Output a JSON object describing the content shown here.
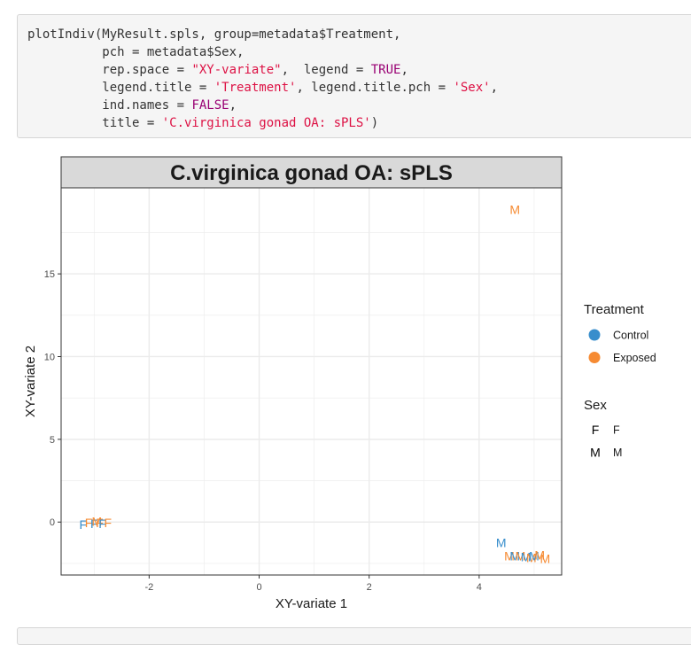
{
  "code": {
    "lines": [
      [
        {
          "t": "plotIndiv(MyResult.spls, group=metadata$Treatment,"
        }
      ],
      [
        {
          "t": "          pch = metadata$Sex,"
        }
      ],
      [
        {
          "t": "          rep.space = "
        },
        {
          "t": "\"XY-variate\"",
          "c": "str"
        },
        {
          "t": ",  legend = "
        },
        {
          "t": "TRUE",
          "c": "kw"
        },
        {
          "t": ","
        }
      ],
      [
        {
          "t": "          legend.title = "
        },
        {
          "t": "'Treatment'",
          "c": "str"
        },
        {
          "t": ", legend.title.pch = "
        },
        {
          "t": "'Sex'",
          "c": "str"
        },
        {
          "t": ","
        }
      ],
      [
        {
          "t": "          ind.names = "
        },
        {
          "t": "FALSE",
          "c": "kw"
        },
        {
          "t": ","
        }
      ],
      [
        {
          "t": "          title = "
        },
        {
          "t": "'C.virginica gonad OA: sPLS'",
          "c": "str"
        },
        {
          "t": ")"
        }
      ]
    ]
  },
  "colors": {
    "control": "#388ECC",
    "exposed": "#F68B33",
    "panel_header_bg": "#d9d9d9",
    "grid": "#ebebeb"
  },
  "chart_data": {
    "type": "scatter",
    "title": "C.virginica gonad OA: sPLS",
    "xlabel": "XY-variate 1",
    "ylabel": "XY-variate 2",
    "xlim": [
      -3.6,
      5.5
    ],
    "ylim": [
      -3.2,
      20.2
    ],
    "xticks": [
      -2,
      0,
      2,
      4
    ],
    "yticks": [
      0,
      5,
      10,
      15
    ],
    "grid": true,
    "legend_position": "right",
    "legend": {
      "group_title": "Treatment",
      "groups": [
        {
          "name": "Control",
          "color": "#388ECC"
        },
        {
          "name": "Exposed",
          "color": "#F68B33"
        }
      ],
      "pch_title": "Sex",
      "pch": [
        {
          "symbol": "F",
          "label": "F"
        },
        {
          "symbol": "M",
          "label": "M"
        }
      ]
    },
    "points": [
      {
        "x": 4.65,
        "y": 18.9,
        "group": "Exposed",
        "sex": "M"
      },
      {
        "x": 4.4,
        "y": -1.25,
        "group": "Control",
        "sex": "M"
      },
      {
        "x": 4.55,
        "y": -2.05,
        "group": "Exposed",
        "sex": "M"
      },
      {
        "x": 4.65,
        "y": -2.05,
        "group": "Control",
        "sex": "M"
      },
      {
        "x": 4.75,
        "y": -2.05,
        "group": "Exposed",
        "sex": "M"
      },
      {
        "x": 4.85,
        "y": -2.1,
        "group": "Control",
        "sex": "M"
      },
      {
        "x": 4.95,
        "y": -2.15,
        "group": "Exposed",
        "sex": "M"
      },
      {
        "x": 5.0,
        "y": -2.05,
        "group": "Control",
        "sex": "M"
      },
      {
        "x": 5.1,
        "y": -2.0,
        "group": "Exposed",
        "sex": "M"
      },
      {
        "x": 5.2,
        "y": -2.2,
        "group": "Exposed",
        "sex": "M"
      },
      {
        "x": -3.2,
        "y": -0.15,
        "group": "Control",
        "sex": "F"
      },
      {
        "x": -3.1,
        "y": -0.05,
        "group": "Exposed",
        "sex": "F"
      },
      {
        "x": -3.0,
        "y": -0.1,
        "group": "Control",
        "sex": "F"
      },
      {
        "x": -2.95,
        "y": 0.05,
        "group": "Exposed",
        "sex": "M"
      },
      {
        "x": -2.9,
        "y": -0.05,
        "group": "Exposed",
        "sex": "F"
      },
      {
        "x": -2.85,
        "y": -0.1,
        "group": "Control",
        "sex": "F"
      },
      {
        "x": -2.75,
        "y": -0.05,
        "group": "Exposed",
        "sex": "F"
      }
    ]
  }
}
